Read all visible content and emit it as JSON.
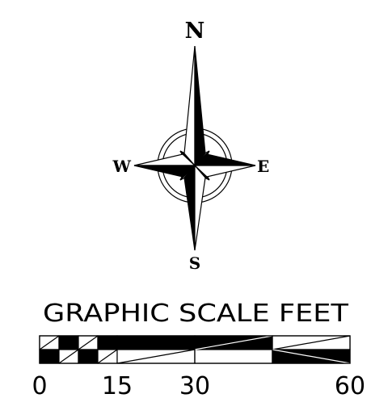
{
  "compass": {
    "north": "N",
    "south": "S",
    "east": "E",
    "west": "W"
  },
  "scale": {
    "title": "GRAPHIC SCALE FEET",
    "ticks": [
      "0",
      "15",
      "30",
      "60"
    ]
  },
  "colors": {
    "ink": "#000000",
    "paper": "#ffffff"
  }
}
